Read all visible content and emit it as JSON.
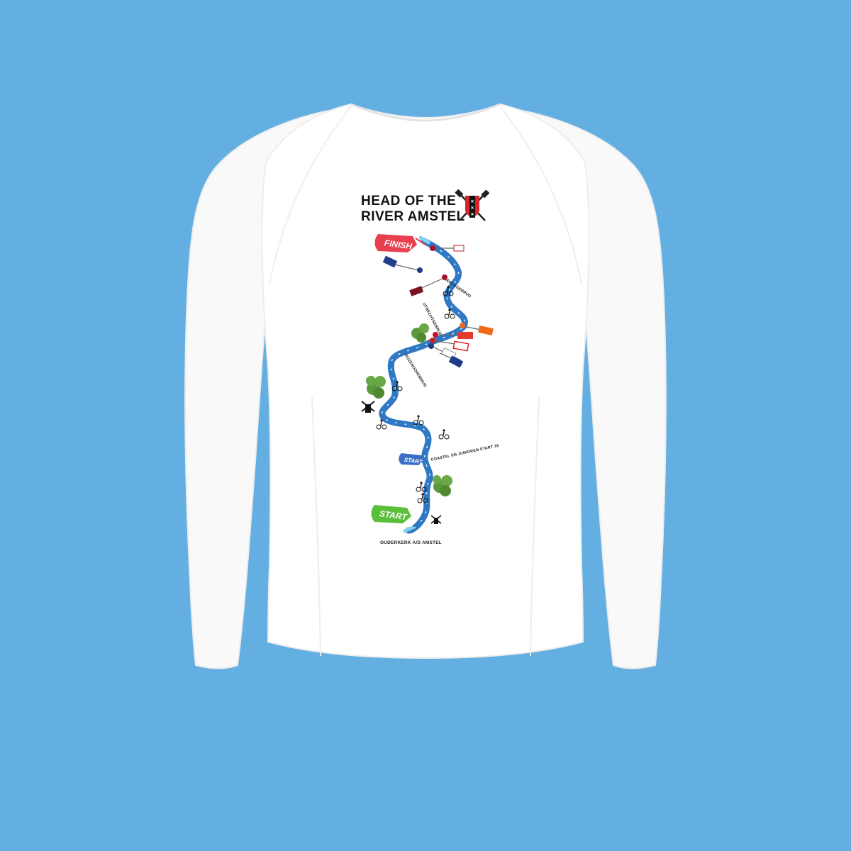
{
  "print": {
    "title_line1": "HEAD OF THE",
    "title_line2": "RIVER AMSTEL",
    "finish_label": "FINISH",
    "start_label": "START",
    "start2_label": "START",
    "label_berlagebrug": "BERLAGEBRUG",
    "label_utrechtsebrug": "UTRECHTSEBRUG",
    "label_rozenoordbrug": "RIJZENOORDBRUG",
    "label_coastal": "COASTAL EN JUNIOREN START 16",
    "label_ouderkerk": "OUDERKERK A/D AMSTEL"
  },
  "colors": {
    "background": "#63afe2",
    "shirt": "#ffffff",
    "river": "#2f78c4",
    "finish_flag": "#e8404f",
    "start_flag": "#5cbf3c",
    "start2_flag": "#3a6fc4",
    "trees": "#5b9a3c"
  },
  "icons": [
    "crossed-oars-icon",
    "amsterdam-shield-icon",
    "cyclist-icon",
    "windmill-icon",
    "tree-icon",
    "oar-blade-icon",
    "rowing-boat-icon"
  ]
}
